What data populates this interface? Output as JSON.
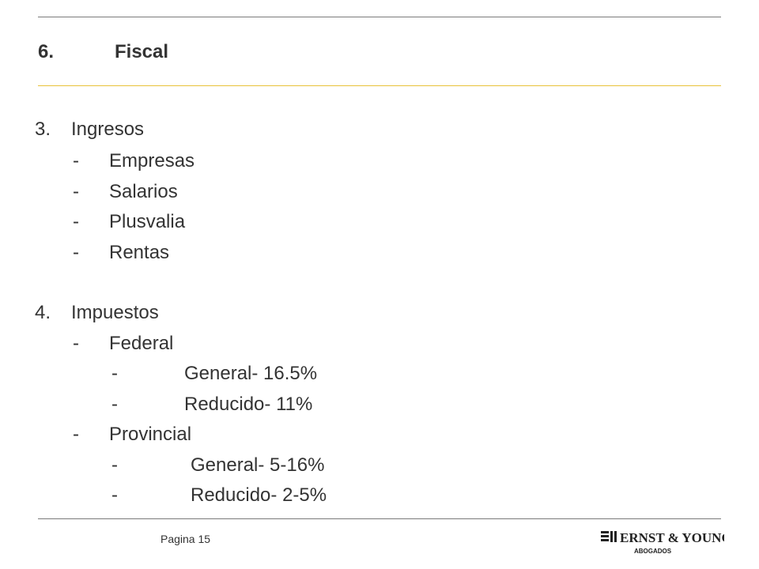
{
  "header": {
    "section_number": "6.",
    "section_title": "Fiscal"
  },
  "outline": {
    "item3": {
      "number": "3.",
      "label": "Ingresos",
      "children": [
        {
          "marker": "-",
          "label": "Empresas"
        },
        {
          "marker": "-",
          "label": "Salarios"
        },
        {
          "marker": "-",
          "label": "Plusvalia"
        },
        {
          "marker": "-",
          "label": "Rentas"
        }
      ]
    },
    "item4": {
      "number": "4.",
      "label": "Impuestos",
      "federal": {
        "marker": "-",
        "label": "Federal",
        "children": [
          {
            "marker": "-",
            "label": "General- 16.5%"
          },
          {
            "marker": "-",
            "label": "Reducido- 11%"
          }
        ]
      },
      "provincial": {
        "marker": "-",
        "label": "Provincial",
        "children": [
          {
            "marker": "-",
            "label": "General- 5-16%"
          },
          {
            "marker": "-",
            "label": "Reducido- 2-5%"
          }
        ]
      }
    }
  },
  "footer": {
    "page_label": "Pagina 15",
    "logo_text": "ERNST & YOUNG",
    "logo_subtext": "ABOGADOS"
  },
  "colors": {
    "accent_rule": "#e8c23a",
    "rule": "#7a7a7a",
    "text": "#333333"
  }
}
